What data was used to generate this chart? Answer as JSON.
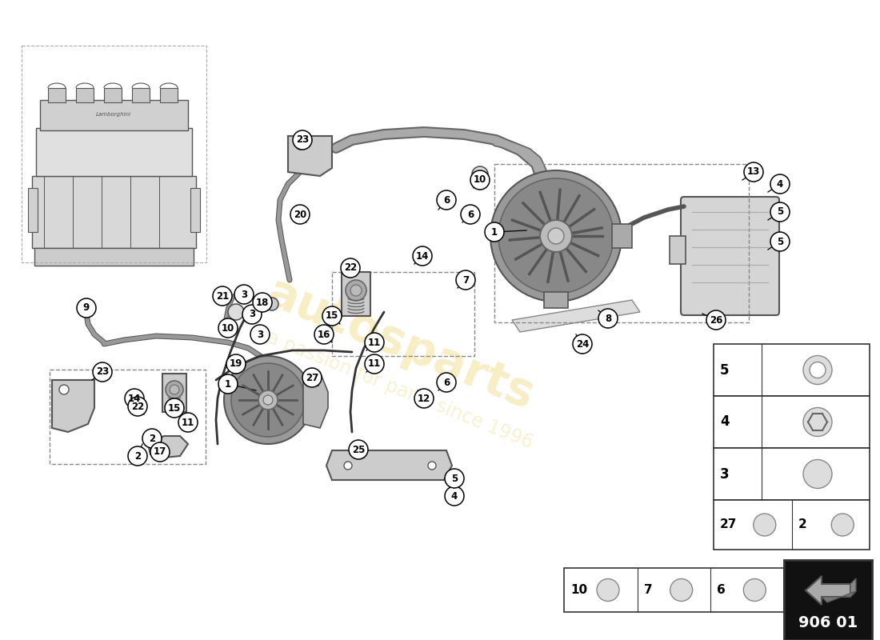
{
  "bg_color": "#ffffff",
  "watermark1": "autosparts",
  "watermark2": "a passion for parts since 1996",
  "watermark_color": "#e8c840",
  "catalog_code": "906 01",
  "catalog_bg": "#111111",
  "catalog_text_color": "#ffffff",
  "line_color": "#000000",
  "part_color": "#000000",
  "bubble_bg": "#ffffff",
  "engine_fill": "#e0e0e0",
  "engine_dark": "#888888",
  "engine_line": "#555555",
  "pump_outer": "#777777",
  "pump_hub": "#aaaaaa",
  "hose_color": "#444444",
  "bracket_fill": "#cccccc",
  "filter_fill": "#cccccc",
  "dashed_color": "#888888"
}
